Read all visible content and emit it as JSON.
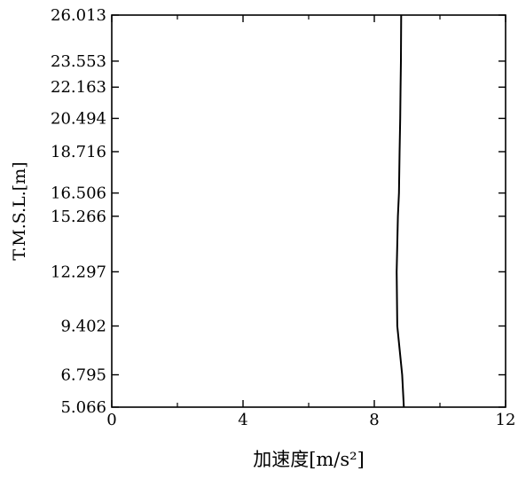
{
  "chart_data": {
    "type": "line",
    "xlabel": "加速度[m/s²]",
    "ylabel": "T.M.S.L.[m]",
    "xlim": [
      0,
      12
    ],
    "ylim": [
      5.066,
      26.013
    ],
    "x_ticks": [
      0,
      4,
      8,
      12
    ],
    "x_tick_labels": [
      "0",
      "4",
      "8",
      "12"
    ],
    "y_ticks": [
      5.066,
      6.795,
      9.402,
      12.297,
      15.266,
      16.506,
      18.716,
      20.494,
      22.163,
      23.553,
      26.013
    ],
    "y_tick_labels": [
      "5.066",
      "6.795",
      "9.402",
      "12.297",
      "15.266",
      "16.506",
      "18.716",
      "20.494",
      "22.163",
      "23.553",
      "26.013"
    ],
    "grid": false,
    "series": [
      {
        "x": [
          8.9,
          8.85,
          8.7,
          8.68,
          8.72,
          8.75,
          8.77,
          8.79,
          8.8,
          8.81,
          8.82
        ],
        "y": [
          5.066,
          6.795,
          9.402,
          12.297,
          15.266,
          16.506,
          18.716,
          20.494,
          22.163,
          23.553,
          26.013
        ],
        "color": "#000000"
      }
    ]
  }
}
